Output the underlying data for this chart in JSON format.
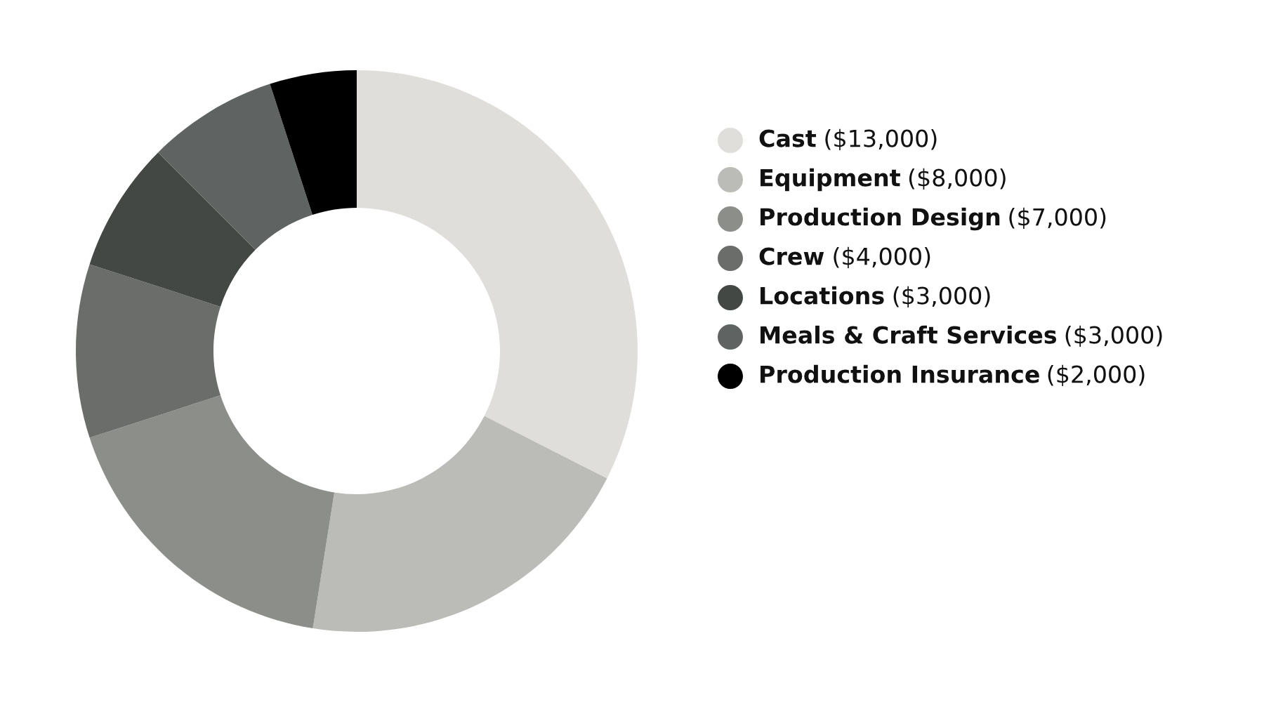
{
  "chart_data": {
    "type": "donut",
    "categories": [
      "Cast",
      "Equipment",
      "Production Design",
      "Crew",
      "Locations",
      "Meals & Craft Services",
      "Production Insurance"
    ],
    "values": [
      13000,
      8000,
      7000,
      4000,
      3000,
      3000,
      2000
    ],
    "value_labels": [
      "($13,000)",
      "($8,000)",
      "($7,000)",
      "($4,000)",
      "($3,000)",
      "($3,000)",
      "($2,000)"
    ],
    "colors": [
      "#e0dedb",
      "#bbbbb7",
      "#8c8e89",
      "#6b6d6a",
      "#434845",
      "#5f6462",
      "#000000"
    ],
    "legend": "right"
  }
}
